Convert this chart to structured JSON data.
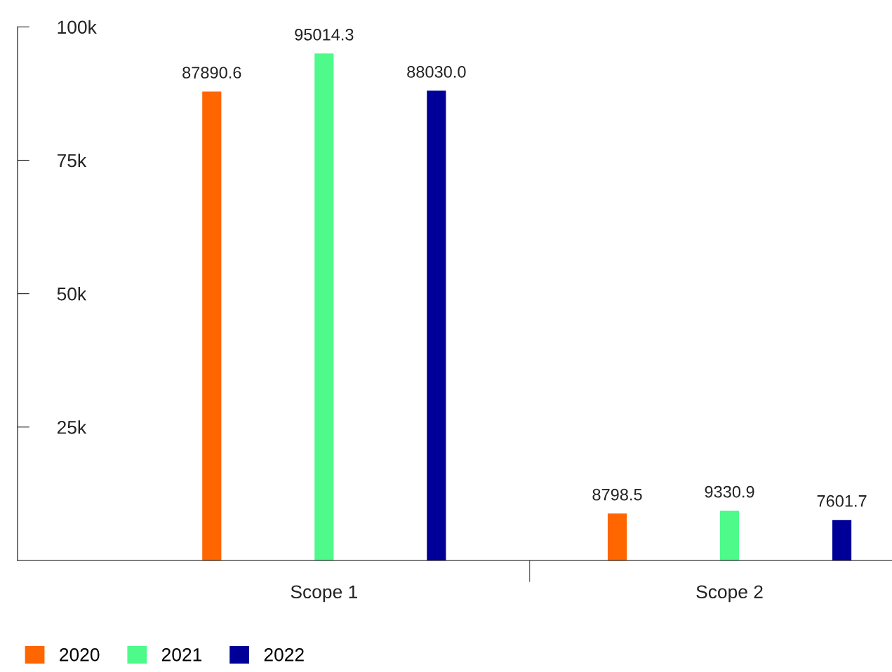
{
  "chart_data": {
    "type": "bar",
    "categories": [
      "Scope 1",
      "Scope 2"
    ],
    "series": [
      {
        "name": "2020",
        "color": "#ff6600",
        "values": [
          87890.6,
          8798.5
        ]
      },
      {
        "name": "2021",
        "color": "#4dfa8a",
        "values": [
          95014.3,
          9330.9
        ]
      },
      {
        "name": "2022",
        "color": "#000099",
        "values": [
          88030.0,
          7601.7
        ]
      }
    ],
    "ylim": [
      0,
      100000
    ],
    "yticks": [
      {
        "value": 25000,
        "label": "25k"
      },
      {
        "value": 50000,
        "label": "50k"
      },
      {
        "value": 75000,
        "label": "75k"
      },
      {
        "value": 100000,
        "label": "100k"
      }
    ],
    "value_labels": [
      [
        "87890.6",
        "8798.5"
      ],
      [
        "95014.3",
        "9330.9"
      ],
      [
        "88030.0",
        "7601.7"
      ]
    ],
    "grid": false,
    "legend": "bottom left"
  }
}
